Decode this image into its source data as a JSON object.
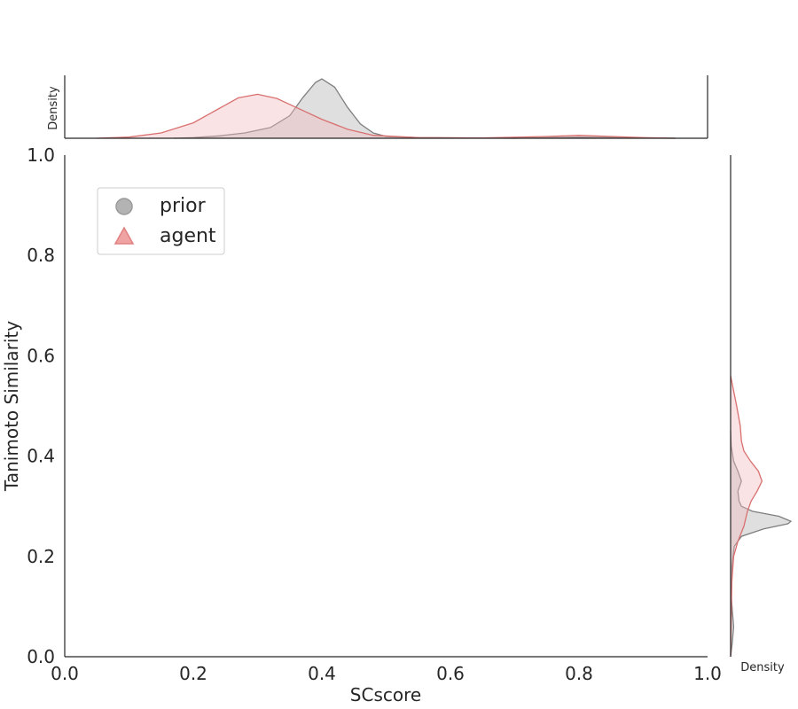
{
  "chart_data": {
    "type": "scatter",
    "subtype": "jointplot-with-marginal-kde",
    "xlabel": "SCscore",
    "ylabel": "Tanimoto Similarity",
    "xlim": [
      0.0,
      1.0
    ],
    "ylim": [
      0.0,
      1.0
    ],
    "x_ticks": [
      "0.0",
      "0.2",
      "0.4",
      "0.6",
      "0.8",
      "1.0"
    ],
    "y_ticks": [
      "0.0",
      "0.2",
      "0.4",
      "0.6",
      "0.8",
      "1.0"
    ],
    "marginal_label": "Density",
    "grid": false,
    "legend_position": "upper-left",
    "legend": [
      {
        "label": "prior",
        "marker": "circle",
        "color": "#9e9e9e"
      },
      {
        "label": "agent",
        "marker": "triangle",
        "color": "#e08080"
      }
    ],
    "series": [
      {
        "name": "prior",
        "color": "#7f7f7f",
        "fill": "#b0b0b0",
        "x_density": [
          [
            0.17,
            0.0
          ],
          [
            0.2,
            0.01
          ],
          [
            0.24,
            0.04
          ],
          [
            0.28,
            0.09
          ],
          [
            0.32,
            0.18
          ],
          [
            0.35,
            0.38
          ],
          [
            0.37,
            0.68
          ],
          [
            0.39,
            0.94
          ],
          [
            0.4,
            1.0
          ],
          [
            0.42,
            0.86
          ],
          [
            0.44,
            0.52
          ],
          [
            0.46,
            0.24
          ],
          [
            0.48,
            0.09
          ],
          [
            0.5,
            0.03
          ],
          [
            0.55,
            0.01
          ],
          [
            0.7,
            0.0
          ],
          [
            0.8,
            0.02
          ],
          [
            0.9,
            0.005
          ],
          [
            0.95,
            0.0
          ]
        ],
        "y_density": [
          [
            0.0,
            0.0
          ],
          [
            0.03,
            0.03
          ],
          [
            0.06,
            0.05
          ],
          [
            0.09,
            0.03
          ],
          [
            0.12,
            0.01
          ],
          [
            0.18,
            0.02
          ],
          [
            0.22,
            0.06
          ],
          [
            0.24,
            0.18
          ],
          [
            0.255,
            0.55
          ],
          [
            0.265,
            0.95
          ],
          [
            0.27,
            1.0
          ],
          [
            0.28,
            0.8
          ],
          [
            0.29,
            0.36
          ],
          [
            0.3,
            0.18
          ],
          [
            0.31,
            0.14
          ],
          [
            0.33,
            0.12
          ],
          [
            0.35,
            0.18
          ],
          [
            0.37,
            0.12
          ],
          [
            0.39,
            0.05
          ],
          [
            0.42,
            0.01
          ],
          [
            0.45,
            0.0
          ]
        ]
      },
      {
        "name": "agent",
        "color": "#d97070",
        "fill": "#f2b8bf",
        "x_density": [
          [
            0.05,
            0.0
          ],
          [
            0.1,
            0.02
          ],
          [
            0.15,
            0.09
          ],
          [
            0.2,
            0.26
          ],
          [
            0.24,
            0.5
          ],
          [
            0.27,
            0.68
          ],
          [
            0.3,
            0.74
          ],
          [
            0.33,
            0.67
          ],
          [
            0.36,
            0.52
          ],
          [
            0.4,
            0.32
          ],
          [
            0.44,
            0.15
          ],
          [
            0.48,
            0.05
          ],
          [
            0.55,
            0.01
          ],
          [
            0.65,
            0.005
          ],
          [
            0.75,
            0.03
          ],
          [
            0.8,
            0.05
          ],
          [
            0.85,
            0.03
          ],
          [
            0.9,
            0.01
          ],
          [
            0.95,
            0.0
          ]
        ],
        "y_density": [
          [
            0.0,
            0.0
          ],
          [
            0.08,
            0.01
          ],
          [
            0.15,
            0.02
          ],
          [
            0.2,
            0.05
          ],
          [
            0.23,
            0.12
          ],
          [
            0.26,
            0.22
          ],
          [
            0.29,
            0.28
          ],
          [
            0.31,
            0.34
          ],
          [
            0.33,
            0.44
          ],
          [
            0.35,
            0.52
          ],
          [
            0.37,
            0.46
          ],
          [
            0.39,
            0.33
          ],
          [
            0.41,
            0.22
          ],
          [
            0.43,
            0.18
          ],
          [
            0.46,
            0.16
          ],
          [
            0.5,
            0.1
          ],
          [
            0.53,
            0.05
          ],
          [
            0.56,
            0.0
          ]
        ]
      }
    ]
  }
}
